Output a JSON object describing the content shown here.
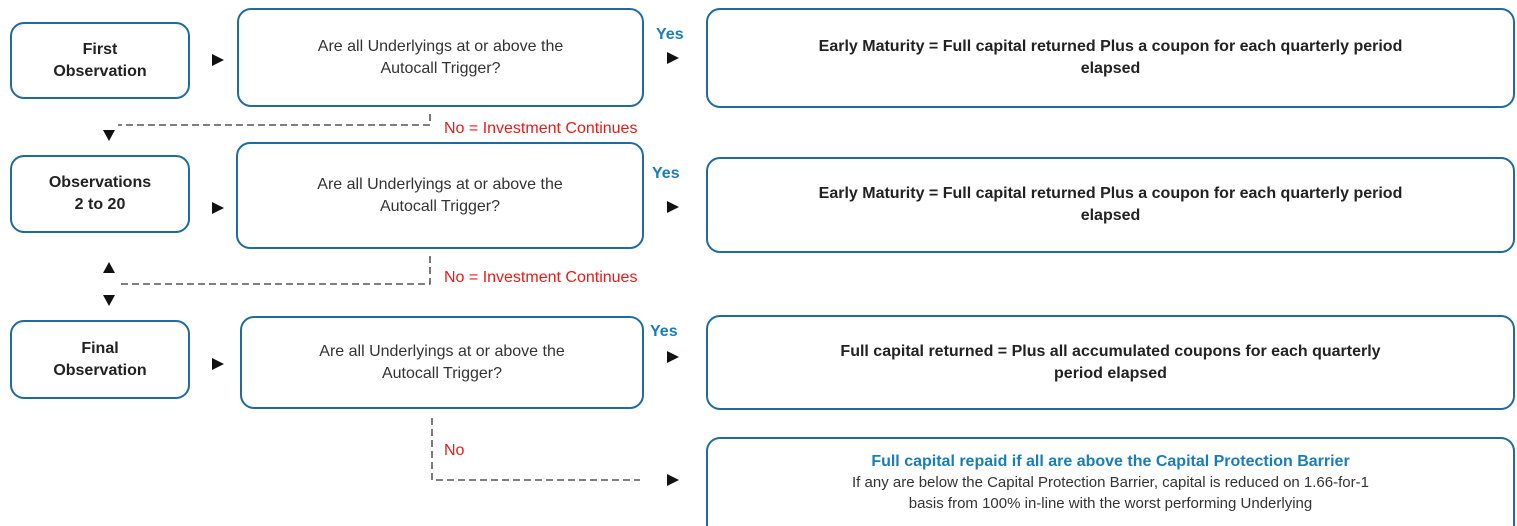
{
  "rows": [
    {
      "stage": [
        "First",
        "Observation"
      ],
      "question": [
        "Are all Underlyings at or above the",
        "Autocall Trigger?"
      ],
      "yes": "Yes",
      "outcome": [
        "Early Maturity = Full capital returned Plus a coupon for each quarterly period",
        "elapsed"
      ]
    },
    {
      "stage": [
        "Observations",
        "2 to 20"
      ],
      "question": [
        "Are all Underlyings at or above the",
        "Autocall Trigger?"
      ],
      "yes": "Yes",
      "outcome": [
        "Early Maturity = Full capital returned Plus a coupon for each quarterly period",
        "elapsed"
      ]
    },
    {
      "stage": [
        "Final",
        "Observation"
      ],
      "question": [
        "Are all Underlyings at or above the",
        "Autocall Trigger?"
      ],
      "yes": "Yes",
      "outcome": [
        "Full capital returned = Plus all accumulated coupons for each quarterly",
        "period elapsed"
      ]
    }
  ],
  "no_labels": [
    "No = Investment Continues",
    "No = Investment Continues",
    "No"
  ],
  "final_outcome": {
    "title": "Full capital repaid if all are above the Capital Protection Barrier",
    "body": [
      "If any are below the Capital Protection Barrier, capital is reduced on 1.66-for-1",
      "basis from 100%  in-line with the worst performing Underlying"
    ]
  }
}
